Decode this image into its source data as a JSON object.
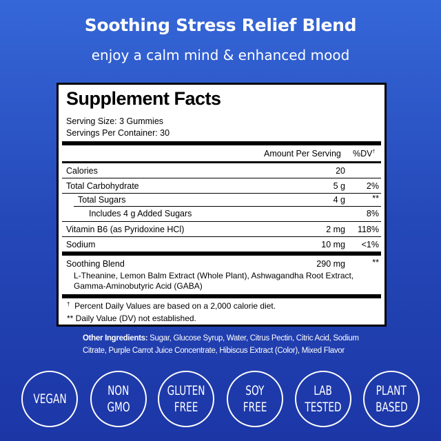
{
  "header": {
    "title": "Soothing Stress Relief Blend",
    "subtitle": "enjoy a calm mind & enhanced mood"
  },
  "facts": {
    "heading": "Supplement Facts",
    "serving_size": "Serving Size: 3 Gummies",
    "servings_per_container": "Servings Per Container: 30",
    "col_amount": "Amount Per Serving",
    "col_dv": "%DV",
    "dagger": "†",
    "rows": [
      {
        "name": "Calories",
        "amount": "20",
        "dv": ""
      },
      {
        "name": "Total Carbohydrate",
        "amount": "5 g",
        "dv": "2%"
      },
      {
        "name": "Total Sugars",
        "amount": "4 g",
        "dv": "**"
      },
      {
        "name": "Includes 4 g Added Sugars",
        "amount": "",
        "dv": "8%"
      },
      {
        "name": "Vitamin B6 (as Pyridoxine HCl)",
        "amount": "2 mg",
        "dv": "118%"
      },
      {
        "name": "Sodium",
        "amount": "10 mg",
        "dv": "<1%"
      },
      {
        "name": "Soothing Blend",
        "amount": "290 mg",
        "dv": "**"
      }
    ],
    "blend_line1": "L-Theanine, Lemon Balm Extract (Whole Plant), Ashwagandha Root Extract,",
    "blend_line2": "Gamma-Aminobutyric Acid (GABA)",
    "footnote1": "Percent Daily Values are based on a 2,000 calorie diet.",
    "footnote2": "** Daily Value (DV) not established."
  },
  "ingredients": {
    "label": "Other Ingredients:",
    "text": " Sugar, Glucose Syrup, Water, Citrus Pectin, Citric Acid, Sodium Citrate, Purple Carrot Juice Concentrate, Hibiscus Extract (Color), Mixed Flavor"
  },
  "badges": [
    [
      "VEGAN"
    ],
    [
      "NON",
      "GMO"
    ],
    [
      "GLUTEN",
      "FREE"
    ],
    [
      "SOY",
      "FREE"
    ],
    [
      "LAB",
      "TESTED"
    ],
    [
      "PLANT",
      "BASED"
    ]
  ]
}
